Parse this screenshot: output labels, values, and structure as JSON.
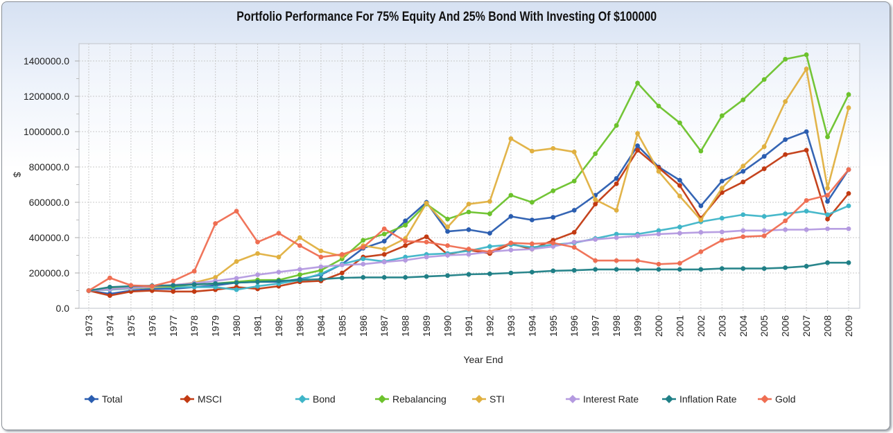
{
  "chart_data": {
    "type": "line",
    "title": "Portfolio Performance For 75% Equity And 25% Bond With Investing Of $100000",
    "xlabel": "Year End",
    "ylabel": "$",
    "ylim": [
      0,
      1400000
    ],
    "yticks": [
      "0.0",
      "200000.0",
      "400000.0",
      "600000.0",
      "800000.0",
      "1000000.0",
      "1200000.0",
      "1400000.0"
    ],
    "ytick_values": [
      0,
      200000,
      400000,
      600000,
      800000,
      1000000,
      1200000,
      1400000
    ],
    "grid": true,
    "legend_position": "bottom",
    "x": [
      "1973",
      "1974",
      "1975",
      "1976",
      "1977",
      "1978",
      "1979",
      "1980",
      "1981",
      "1982",
      "1983",
      "1984",
      "1985",
      "1986",
      "1987",
      "1988",
      "1989",
      "1990",
      "1991",
      "1992",
      "1993",
      "1994",
      "1995",
      "1996",
      "1997",
      "1998",
      "1999",
      "2000",
      "2001",
      "2002",
      "2003",
      "2004",
      "2005",
      "2006",
      "2007",
      "2008",
      "2009"
    ],
    "series": [
      {
        "name": "Total",
        "color": "#2a5db0",
        "values": [
          100000,
          82000,
          100000,
          110000,
          110000,
          120000,
          130000,
          145000,
          150000,
          150000,
          165000,
          190000,
          250000,
          340000,
          380000,
          495000,
          600000,
          435000,
          445000,
          425000,
          520000,
          500000,
          515000,
          555000,
          640000,
          735000,
          920000,
          800000,
          725000,
          580000,
          720000,
          775000,
          860000,
          955000,
          1000000,
          605000,
          785000
        ]
      },
      {
        "name": "MSCI",
        "color": "#c23a12",
        "values": [
          100000,
          72000,
          95000,
          100000,
          95000,
          95000,
          105000,
          120000,
          110000,
          125000,
          150000,
          155000,
          200000,
          290000,
          305000,
          355000,
          405000,
          305000,
          330000,
          310000,
          365000,
          335000,
          385000,
          430000,
          590000,
          705000,
          895000,
          795000,
          695000,
          510000,
          655000,
          715000,
          790000,
          870000,
          895000,
          505000,
          650000
        ]
      },
      {
        "name": "Bond",
        "color": "#3fb5c8",
        "values": [
          100000,
          105000,
          112000,
          118000,
          120000,
          120000,
          120000,
          105000,
          125000,
          140000,
          160000,
          195000,
          250000,
          280000,
          265000,
          290000,
          305000,
          310000,
          325000,
          350000,
          360000,
          345000,
          360000,
          370000,
          395000,
          420000,
          420000,
          440000,
          460000,
          490000,
          510000,
          530000,
          520000,
          535000,
          550000,
          530000,
          580000
        ]
      },
      {
        "name": "Rebalancing",
        "color": "#6cc22c",
        "values": [
          100000,
          115000,
          115000,
          120000,
          125000,
          135000,
          140000,
          150000,
          160000,
          160000,
          190000,
          215000,
          280000,
          385000,
          420000,
          470000,
          590000,
          505000,
          545000,
          535000,
          640000,
          600000,
          665000,
          720000,
          875000,
          1035000,
          1275000,
          1145000,
          1050000,
          890000,
          1090000,
          1180000,
          1295000,
          1410000,
          1435000,
          970000,
          1210000
        ]
      },
      {
        "name": "STI",
        "color": "#e0b040",
        "values": [
          100000,
          108000,
          115000,
          120000,
          130000,
          145000,
          175000,
          265000,
          310000,
          290000,
          400000,
          325000,
          295000,
          355000,
          335000,
          395000,
          595000,
          460000,
          590000,
          605000,
          960000,
          890000,
          905000,
          885000,
          615000,
          555000,
          990000,
          775000,
          635000,
          500000,
          680000,
          805000,
          915000,
          1170000,
          1355000,
          680000,
          1135000
        ]
      },
      {
        "name": "Interest Rate",
        "color": "#b49ae0",
        "values": [
          100000,
          108000,
          116000,
          124000,
          132000,
          142000,
          155000,
          170000,
          190000,
          205000,
          220000,
          235000,
          245000,
          250000,
          262000,
          272000,
          290000,
          300000,
          305000,
          320000,
          330000,
          335000,
          350000,
          375000,
          390000,
          400000,
          410000,
          420000,
          425000,
          430000,
          432000,
          440000,
          440000,
          445000,
          445000,
          450000,
          450000
        ]
      },
      {
        "name": "Inflation Rate",
        "color": "#1f7f86",
        "values": [
          100000,
          120000,
          125000,
          128000,
          130000,
          135000,
          140000,
          145000,
          150000,
          155000,
          160000,
          165000,
          172000,
          175000,
          175000,
          175000,
          180000,
          185000,
          192000,
          195000,
          200000,
          205000,
          212000,
          215000,
          220000,
          220000,
          220000,
          220000,
          220000,
          220000,
          225000,
          225000,
          225000,
          230000,
          238000,
          258000,
          258000
        ]
      },
      {
        "name": "Gold",
        "color": "#ef6e52",
        "values": [
          100000,
          172000,
          130000,
          125000,
          155000,
          210000,
          480000,
          550000,
          375000,
          425000,
          355000,
          290000,
          305000,
          345000,
          450000,
          380000,
          375000,
          355000,
          335000,
          320000,
          370000,
          365000,
          370000,
          345000,
          270000,
          270000,
          270000,
          250000,
          255000,
          320000,
          385000,
          405000,
          410000,
          495000,
          610000,
          640000,
          785000
        ]
      }
    ]
  }
}
